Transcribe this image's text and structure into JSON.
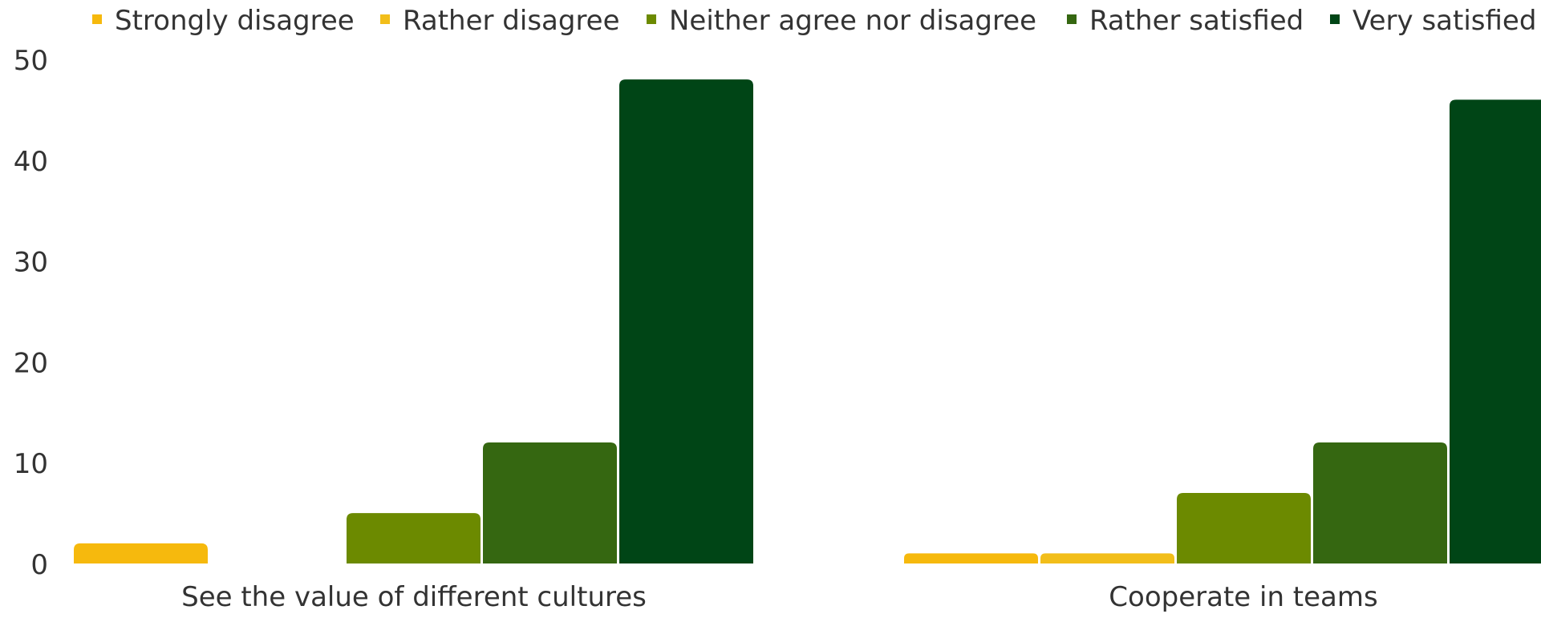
{
  "chart_data": {
    "type": "bar",
    "categories": [
      "See the value of different cultures",
      "Cooperate in teams"
    ],
    "series": [
      {
        "name": "Strongly disagree",
        "color": "#F6B90D",
        "values": [
          2,
          1
        ]
      },
      {
        "name": "Rather disagree",
        "color": "#F2BE1A",
        "values": [
          0,
          1
        ]
      },
      {
        "name": "Neither agree nor disagree",
        "color": "#6C8A00",
        "values": [
          5,
          7
        ]
      },
      {
        "name": "Rather satisfied",
        "color": "#356711",
        "values": [
          12,
          12
        ]
      },
      {
        "name": "Very satisfied",
        "color": "#004516",
        "values": [
          48,
          46
        ]
      }
    ],
    "ylim": [
      0,
      50
    ],
    "yticks": [
      0,
      10,
      20,
      30,
      40,
      50
    ],
    "grid": false,
    "legend_position": "top"
  }
}
